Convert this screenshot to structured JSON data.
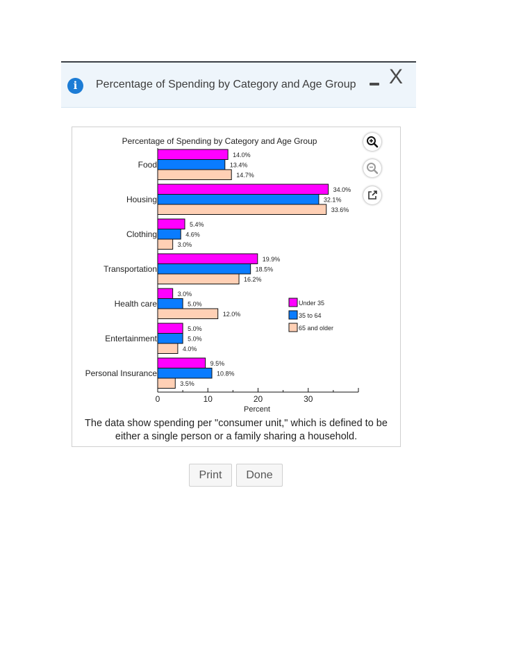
{
  "dialog": {
    "title": "Percentage of Spending by Category and Age Group",
    "info_icon": "i",
    "close_icon": "X"
  },
  "caption": "The data show spending per \"consumer unit,\" which is defined to be either a single person or a family sharing a household.",
  "buttons": {
    "print": "Print",
    "done": "Done"
  },
  "colors": {
    "under35": "#ff00ff",
    "35to64": "#0a7cff",
    "65older": "#ffd0b5"
  },
  "chart_data": {
    "type": "bar",
    "orientation": "horizontal",
    "title": "Percentage of Spending by Category and Age Group",
    "xlabel": "Percent",
    "ylabel": "",
    "xlim": [
      0,
      40
    ],
    "xticks": [
      0,
      10,
      20,
      30
    ],
    "categories": [
      "Food",
      "Housing",
      "Clothing",
      "Transportation",
      "Health care",
      "Entertainment",
      "Personal Insurance"
    ],
    "series": [
      {
        "name": "Under 35",
        "color": "#ff00ff",
        "values": [
          14.0,
          34.0,
          5.4,
          19.9,
          3.0,
          5.0,
          9.5
        ],
        "labels": [
          "14.0%",
          "34.0%",
          "5.4%",
          "19.9%",
          "3.0%",
          "5.0%",
          "9.5%"
        ]
      },
      {
        "name": "35 to 64",
        "color": "#0a7cff",
        "values": [
          13.4,
          32.1,
          4.6,
          18.5,
          5.0,
          5.0,
          10.8
        ],
        "labels": [
          "13.4%",
          "32.1%",
          "4.6%",
          "18.5%",
          "5.0%",
          "5.0%",
          "10.8%"
        ]
      },
      {
        "name": "65 and older",
        "color": "#ffd0b5",
        "values": [
          14.7,
          33.6,
          3.0,
          16.2,
          12.0,
          4.0,
          3.5
        ],
        "labels": [
          "14.7%",
          "33.6%",
          "3.0%",
          "16.2%",
          "12.0%",
          "4.0%",
          "3.5%"
        ]
      }
    ],
    "legend_position": "right"
  }
}
